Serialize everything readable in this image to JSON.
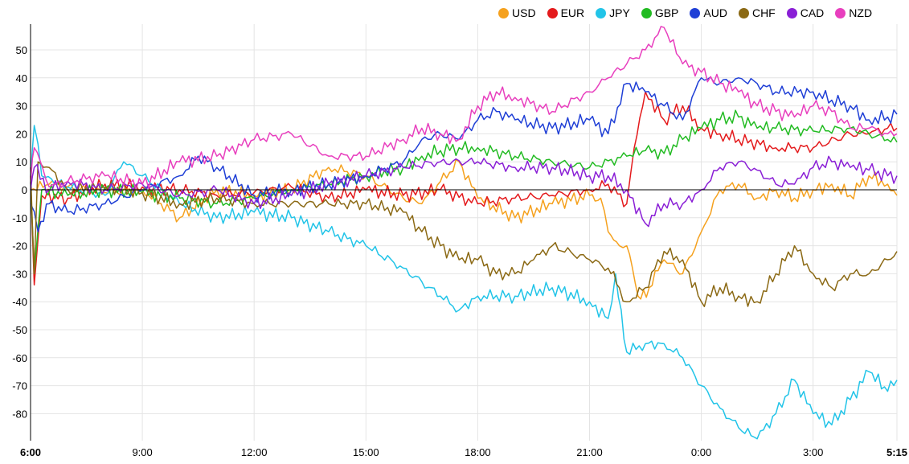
{
  "chart_data": {
    "type": "line",
    "title": "",
    "xlabel": "",
    "ylabel": "",
    "ylim": [
      -90,
      60
    ],
    "y_ticks": [
      50,
      40,
      30,
      20,
      10,
      0,
      -10,
      -20,
      -30,
      -40,
      -50,
      -60,
      -70,
      -80
    ],
    "x_range_hours": [
      6,
      29.25
    ],
    "x_ticks": [
      {
        "label": "6:00",
        "hour": 6,
        "bold": true
      },
      {
        "label": "9:00",
        "hour": 9,
        "bold": false
      },
      {
        "label": "12:00",
        "hour": 12,
        "bold": false
      },
      {
        "label": "15:00",
        "hour": 15,
        "bold": false
      },
      {
        "label": "18:00",
        "hour": 18,
        "bold": false
      },
      {
        "label": "21:00",
        "hour": 21,
        "bold": false
      },
      {
        "label": "0:00",
        "hour": 24,
        "bold": false
      },
      {
        "label": "3:00",
        "hour": 27,
        "bold": false
      },
      {
        "label": "5:15",
        "hour": 29.25,
        "bold": true
      }
    ],
    "grid": true,
    "legend_position": "top-right",
    "series": [
      {
        "name": "USD",
        "color": "#f5a11e",
        "points": [
          [
            6,
            0
          ],
          [
            6.5,
            2
          ],
          [
            7,
            1
          ],
          [
            8,
            -1
          ],
          [
            9,
            0
          ],
          [
            10,
            -10
          ],
          [
            11,
            0
          ],
          [
            12,
            -2
          ],
          [
            13,
            0
          ],
          [
            14,
            8
          ],
          [
            15,
            5
          ],
          [
            16,
            -3
          ],
          [
            16.5,
            -5
          ],
          [
            17,
            3
          ],
          [
            17.5,
            10
          ],
          [
            18,
            -3
          ],
          [
            19,
            -10
          ],
          [
            20,
            -5
          ],
          [
            21,
            -2
          ],
          [
            21.3,
            -3
          ],
          [
            21.5,
            -15
          ],
          [
            21.8,
            -20
          ],
          [
            22,
            -20
          ],
          [
            22.3,
            -38
          ],
          [
            22.6,
            -35
          ],
          [
            23,
            -25
          ],
          [
            23.5,
            -30
          ],
          [
            24,
            -15
          ],
          [
            24.5,
            0
          ],
          [
            25,
            2
          ],
          [
            25.5,
            -3
          ],
          [
            26,
            0
          ],
          [
            26.5,
            -3
          ],
          [
            27,
            0
          ],
          [
            27.5,
            2
          ],
          [
            28,
            -2
          ],
          [
            28.5,
            5
          ],
          [
            29,
            2
          ],
          [
            29.25,
            -2
          ]
        ]
      },
      {
        "name": "EUR",
        "color": "#e41a1c",
        "points": [
          [
            6,
            5
          ],
          [
            6.1,
            -34
          ],
          [
            6.3,
            -2
          ],
          [
            7,
            -3
          ],
          [
            8,
            2
          ],
          [
            9,
            1
          ],
          [
            10,
            0
          ],
          [
            11,
            -2
          ],
          [
            12,
            -1
          ],
          [
            13,
            1
          ],
          [
            14,
            -3
          ],
          [
            15,
            0
          ],
          [
            16,
            -2
          ],
          [
            17,
            0
          ],
          [
            18,
            -5
          ],
          [
            19,
            -3
          ],
          [
            20,
            -2
          ],
          [
            21,
            0
          ],
          [
            21.5,
            2
          ],
          [
            22,
            -5
          ],
          [
            22.2,
            15
          ],
          [
            22.5,
            35
          ],
          [
            23,
            25
          ],
          [
            23.5,
            30
          ],
          [
            24,
            22
          ],
          [
            24.5,
            20
          ],
          [
            25,
            18
          ],
          [
            26,
            15
          ],
          [
            27,
            15
          ],
          [
            28,
            20
          ],
          [
            28.5,
            20
          ],
          [
            29,
            22
          ],
          [
            29.25,
            22
          ]
        ]
      },
      {
        "name": "JPY",
        "color": "#22c4e8",
        "points": [
          [
            6,
            5
          ],
          [
            6.1,
            23
          ],
          [
            6.3,
            5
          ],
          [
            7,
            1
          ],
          [
            8,
            -2
          ],
          [
            8.5,
            10
          ],
          [
            9,
            5
          ],
          [
            10,
            -5
          ],
          [
            11,
            -10
          ],
          [
            12,
            -8
          ],
          [
            13,
            -10
          ],
          [
            14,
            -15
          ],
          [
            15,
            -20
          ],
          [
            16,
            -28
          ],
          [
            17,
            -38
          ],
          [
            17.5,
            -43
          ],
          [
            18,
            -38
          ],
          [
            19,
            -38
          ],
          [
            20,
            -35
          ],
          [
            21,
            -40
          ],
          [
            21.5,
            -46
          ],
          [
            21.7,
            -30
          ],
          [
            22,
            -58
          ],
          [
            22.5,
            -55
          ],
          [
            23,
            -55
          ],
          [
            23.5,
            -60
          ],
          [
            24,
            -70
          ],
          [
            24.5,
            -78
          ],
          [
            25,
            -85
          ],
          [
            25.5,
            -89
          ],
          [
            26,
            -80
          ],
          [
            26.5,
            -68
          ],
          [
            27,
            -80
          ],
          [
            27.5,
            -84
          ],
          [
            28,
            -75
          ],
          [
            28.5,
            -65
          ],
          [
            29,
            -72
          ],
          [
            29.25,
            -68
          ]
        ]
      },
      {
        "name": "GBP",
        "color": "#22bb22",
        "points": [
          [
            6,
            3
          ],
          [
            6.1,
            -30
          ],
          [
            6.3,
            0
          ],
          [
            7,
            -2
          ],
          [
            8,
            0
          ],
          [
            9,
            -1
          ],
          [
            10,
            -3
          ],
          [
            11,
            -5
          ],
          [
            12,
            -3
          ],
          [
            13,
            0
          ],
          [
            14,
            2
          ],
          [
            15,
            5
          ],
          [
            16,
            8
          ],
          [
            16.5,
            12
          ],
          [
            17,
            14
          ],
          [
            17.5,
            15
          ],
          [
            18,
            15
          ],
          [
            19,
            12
          ],
          [
            20,
            10
          ],
          [
            21,
            8
          ],
          [
            22,
            12
          ],
          [
            22.5,
            14
          ],
          [
            23,
            13
          ],
          [
            23.5,
            18
          ],
          [
            24,
            22
          ],
          [
            24.5,
            25
          ],
          [
            25,
            26
          ],
          [
            25.5,
            22
          ],
          [
            26,
            22
          ],
          [
            27,
            21
          ],
          [
            28,
            22
          ],
          [
            28.5,
            20
          ],
          [
            29,
            18
          ],
          [
            29.25,
            17
          ]
        ]
      },
      {
        "name": "AUD",
        "color": "#1f3fd6",
        "points": [
          [
            6,
            -5
          ],
          [
            6.2,
            -15
          ],
          [
            6.5,
            -5
          ],
          [
            7,
            -8
          ],
          [
            8,
            -5
          ],
          [
            9,
            0
          ],
          [
            10,
            5
          ],
          [
            10.5,
            12
          ],
          [
            11,
            8
          ],
          [
            12,
            -2
          ],
          [
            13,
            0
          ],
          [
            14,
            2
          ],
          [
            15,
            5
          ],
          [
            16,
            10
          ],
          [
            16.5,
            18
          ],
          [
            17,
            20
          ],
          [
            17.5,
            18
          ],
          [
            18,
            25
          ],
          [
            18.5,
            28
          ],
          [
            19,
            25
          ],
          [
            20,
            22
          ],
          [
            21,
            25
          ],
          [
            21.5,
            20
          ],
          [
            22,
            38
          ],
          [
            22.5,
            35
          ],
          [
            23,
            30
          ],
          [
            23.5,
            25
          ],
          [
            24,
            40
          ],
          [
            24.5,
            38
          ],
          [
            25,
            40
          ],
          [
            25.5,
            38
          ],
          [
            26,
            35
          ],
          [
            27,
            35
          ],
          [
            27.5,
            32
          ],
          [
            28,
            30
          ],
          [
            28.5,
            25
          ],
          [
            29,
            26
          ],
          [
            29.25,
            27
          ]
        ]
      },
      {
        "name": "CHF",
        "color": "#8b6914",
        "points": [
          [
            6,
            8
          ],
          [
            6.1,
            -30
          ],
          [
            6.2,
            10
          ],
          [
            6.5,
            8
          ],
          [
            7,
            0
          ],
          [
            8,
            1
          ],
          [
            9,
            -1
          ],
          [
            10,
            -5
          ],
          [
            11,
            -3
          ],
          [
            12,
            -5
          ],
          [
            13,
            -5
          ],
          [
            14,
            -5
          ],
          [
            15,
            -5
          ],
          [
            16,
            -8
          ],
          [
            16.5,
            -15
          ],
          [
            17,
            -20
          ],
          [
            17.5,
            -25
          ],
          [
            18,
            -25
          ],
          [
            18.5,
            -30
          ],
          [
            19,
            -30
          ],
          [
            19.5,
            -25
          ],
          [
            20,
            -20
          ],
          [
            21,
            -25
          ],
          [
            21.5,
            -28
          ],
          [
            21.8,
            -35
          ],
          [
            22,
            -40
          ],
          [
            22.5,
            -35
          ],
          [
            23,
            -22
          ],
          [
            23.5,
            -25
          ],
          [
            24,
            -40
          ],
          [
            24.5,
            -35
          ],
          [
            25,
            -38
          ],
          [
            25.5,
            -40
          ],
          [
            26,
            -30
          ],
          [
            26.5,
            -20
          ],
          [
            27,
            -30
          ],
          [
            27.5,
            -35
          ],
          [
            28,
            -30
          ],
          [
            28.5,
            -30
          ],
          [
            29,
            -25
          ],
          [
            29.25,
            -22
          ]
        ]
      },
      {
        "name": "CAD",
        "color": "#8a1fd6",
        "points": [
          [
            6,
            0
          ],
          [
            6.1,
            8
          ],
          [
            6.5,
            0
          ],
          [
            7,
            3
          ],
          [
            8,
            0
          ],
          [
            9,
            2
          ],
          [
            10,
            -2
          ],
          [
            11,
            0
          ],
          [
            12,
            -5
          ],
          [
            13,
            -2
          ],
          [
            14,
            2
          ],
          [
            15,
            5
          ],
          [
            16,
            8
          ],
          [
            17,
            10
          ],
          [
            18,
            10
          ],
          [
            19,
            8
          ],
          [
            20,
            8
          ],
          [
            21,
            5
          ],
          [
            21.5,
            5
          ],
          [
            22,
            0
          ],
          [
            22.5,
            -12
          ],
          [
            23,
            -5
          ],
          [
            23.5,
            -5
          ],
          [
            24,
            0
          ],
          [
            24.5,
            8
          ],
          [
            25,
            10
          ],
          [
            25.5,
            7
          ],
          [
            26,
            2
          ],
          [
            26.5,
            2
          ],
          [
            27,
            8
          ],
          [
            27.5,
            10
          ],
          [
            28,
            8
          ],
          [
            28.5,
            7
          ],
          [
            29,
            5
          ],
          [
            29.25,
            5
          ]
        ]
      },
      {
        "name": "NZD",
        "color": "#e83fbe",
        "points": [
          [
            6,
            2
          ],
          [
            6.1,
            15
          ],
          [
            6.5,
            1
          ],
          [
            7,
            3
          ],
          [
            8,
            5
          ],
          [
            9,
            2
          ],
          [
            10,
            10
          ],
          [
            11,
            12
          ],
          [
            12,
            18
          ],
          [
            13,
            20
          ],
          [
            14,
            12
          ],
          [
            15,
            12
          ],
          [
            16,
            18
          ],
          [
            16.5,
            22
          ],
          [
            17,
            20
          ],
          [
            17.5,
            18
          ],
          [
            18,
            30
          ],
          [
            18.5,
            35
          ],
          [
            19,
            33
          ],
          [
            20,
            28
          ],
          [
            21,
            35
          ],
          [
            21.5,
            40
          ],
          [
            22,
            45
          ],
          [
            22.5,
            50
          ],
          [
            23,
            58
          ],
          [
            23.5,
            45
          ],
          [
            24,
            42
          ],
          [
            24.5,
            38
          ],
          [
            25,
            35
          ],
          [
            25.5,
            30
          ],
          [
            26,
            28
          ],
          [
            26.5,
            26
          ],
          [
            27,
            30
          ],
          [
            27.5,
            28
          ],
          [
            28,
            22
          ],
          [
            28.5,
            22
          ],
          [
            29,
            20
          ],
          [
            29.25,
            20
          ]
        ]
      }
    ]
  }
}
